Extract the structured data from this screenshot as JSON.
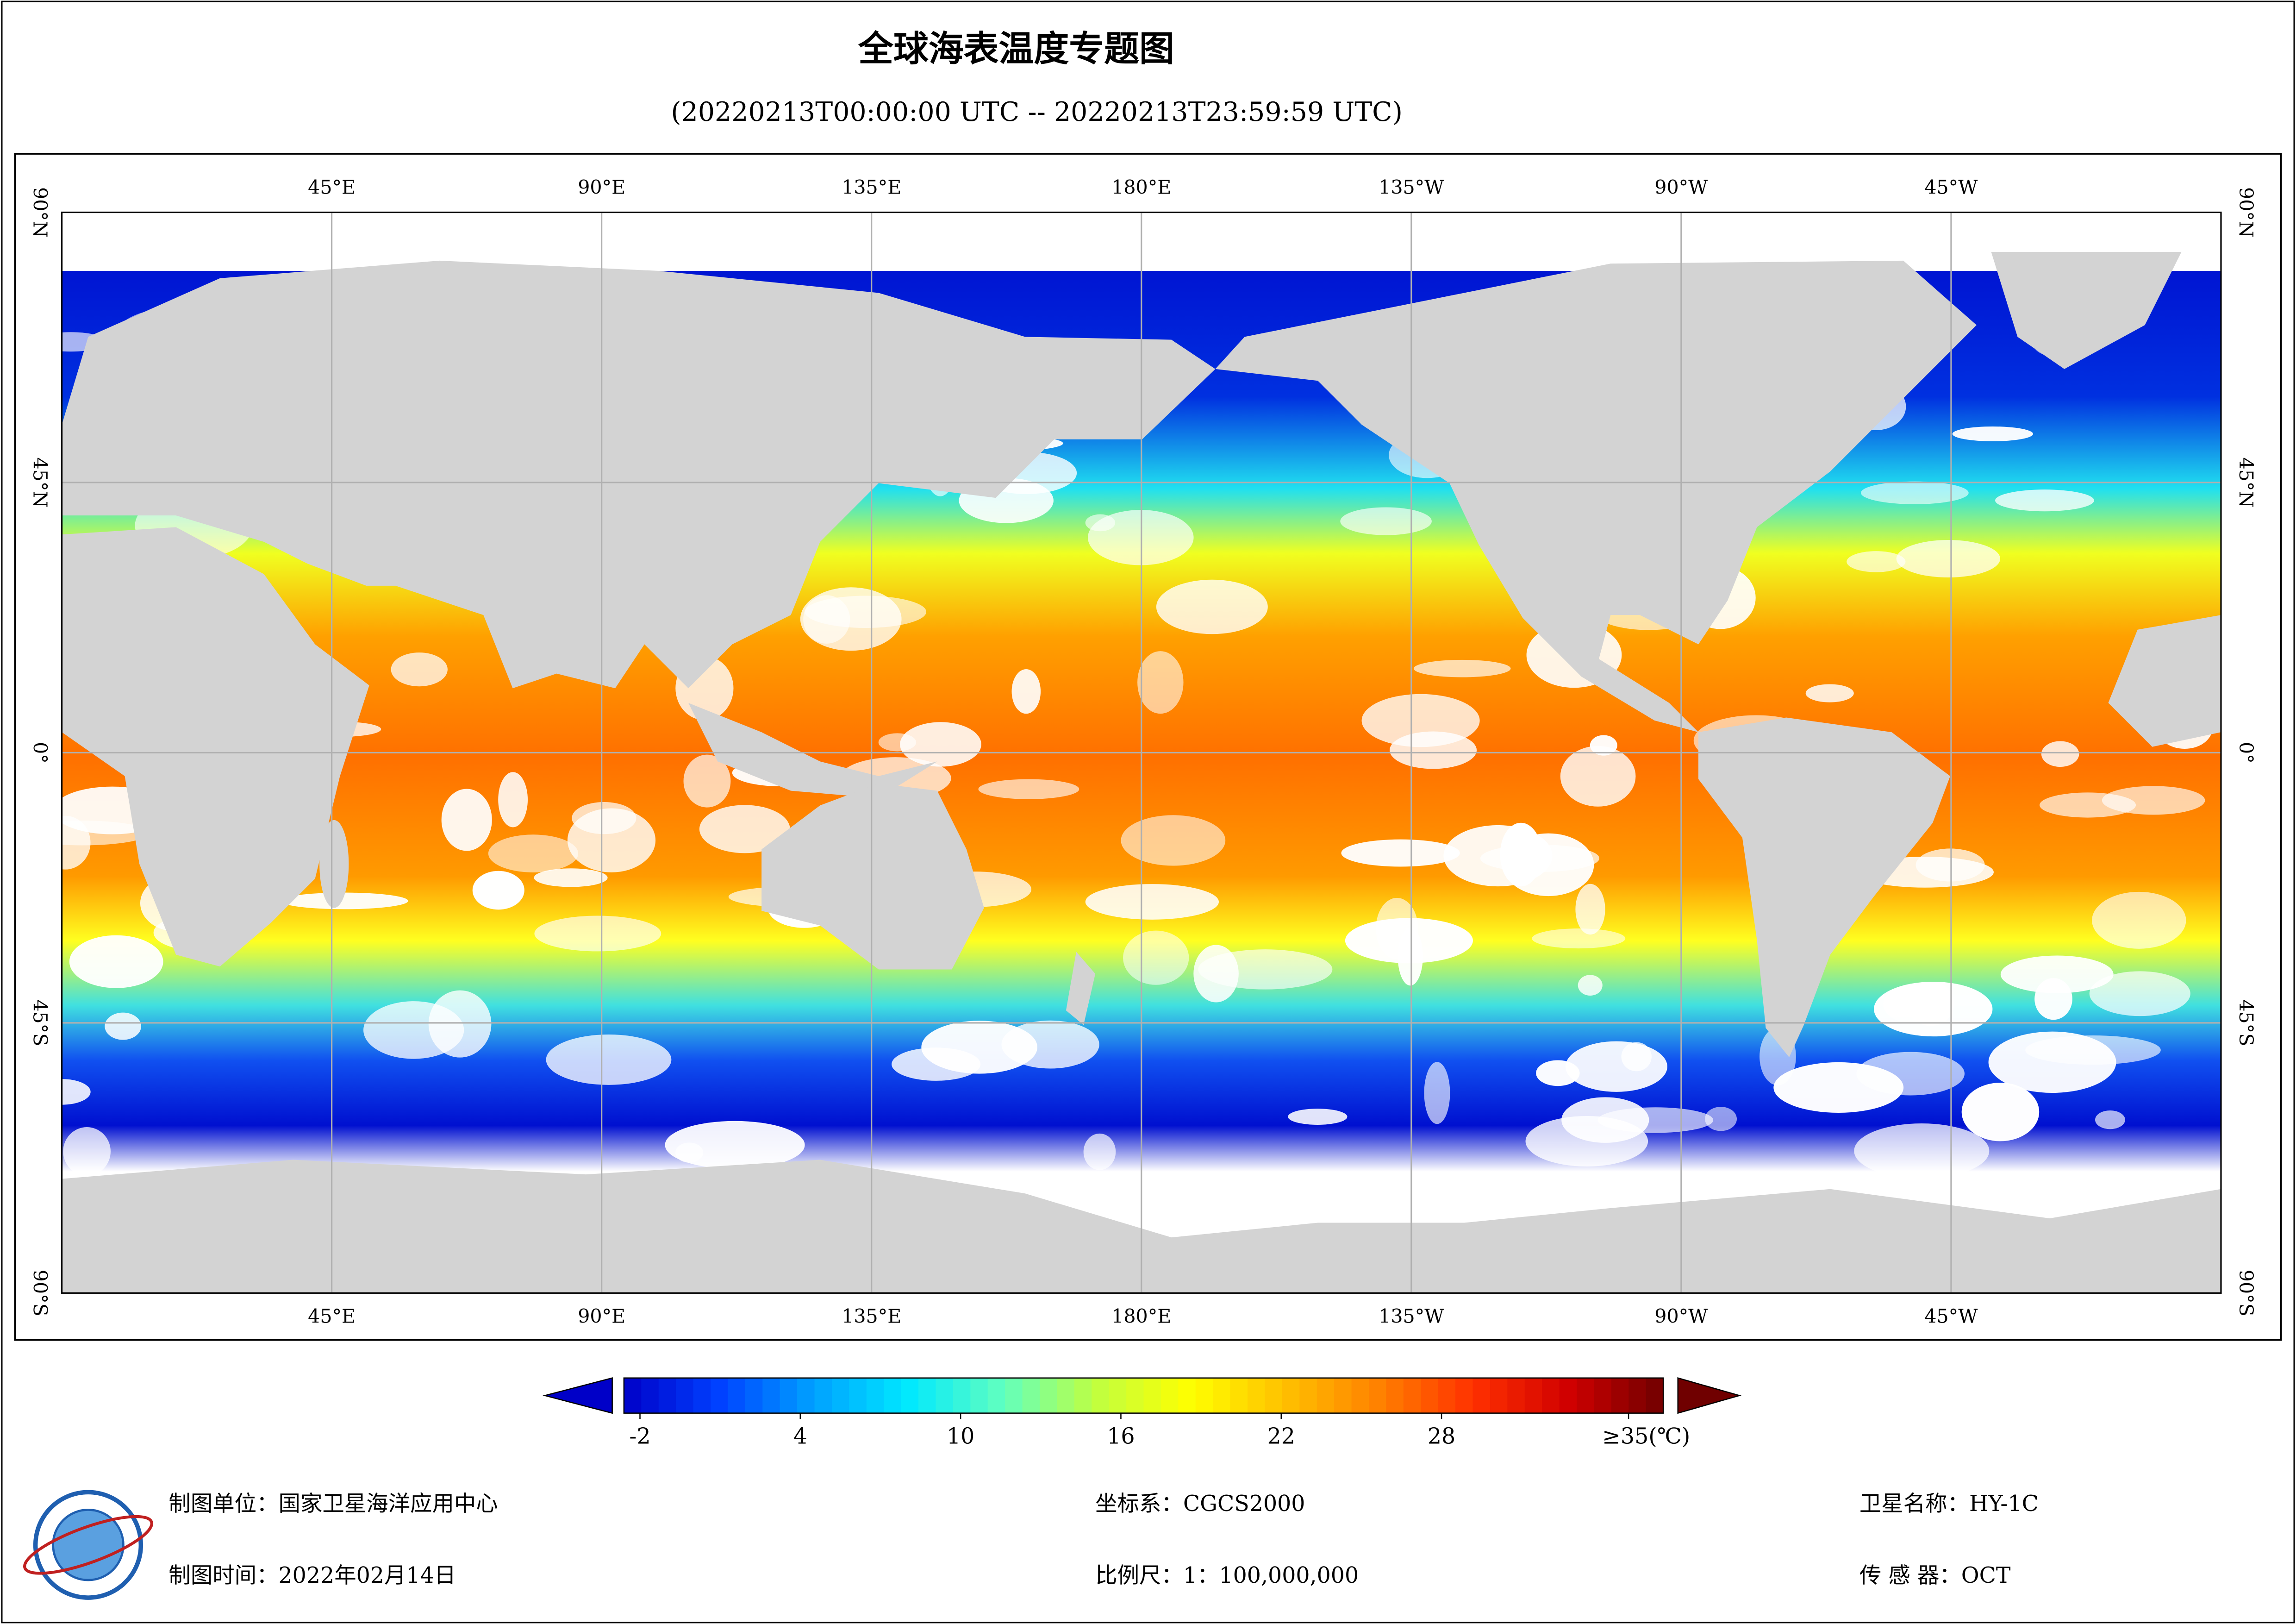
{
  "title": "全球海表温度专题图",
  "subtitle": "(20220213T00:00:00 UTC -- 20220213T23:59:59 UTC)",
  "map": {
    "lon_ticks": [
      {
        "value": 45,
        "label": "45°E"
      },
      {
        "value": 90,
        "label": "90°E"
      },
      {
        "value": 135,
        "label": "135°E"
      },
      {
        "value": 180,
        "label": "180°E"
      },
      {
        "value": 225,
        "label": "135°W"
      },
      {
        "value": 270,
        "label": "90°W"
      },
      {
        "value": 315,
        "label": "45°W"
      }
    ],
    "lat_ticks": [
      {
        "value": 90,
        "label": "90°N"
      },
      {
        "value": 45,
        "label": "45°N"
      },
      {
        "value": 0,
        "label": "0°"
      },
      {
        "value": -45,
        "label": "45°S"
      },
      {
        "value": -90,
        "label": "90°S"
      }
    ],
    "grid": true
  },
  "colorbar": {
    "lim": [
      -2.6,
      36.3
    ],
    "ticks": [
      -2,
      4,
      10,
      16,
      22,
      28,
      {
        "value": 35,
        "label": "≥35(℃)"
      }
    ],
    "colors": [
      "#0000c8",
      "#0040ff",
      "#00a0ff",
      "#00e8ff",
      "#60ffc0",
      "#c0ff40",
      "#ffff00",
      "#ffc000",
      "#ff8000",
      "#ff3000",
      "#d00000",
      "#700000"
    ]
  },
  "footer": {
    "unit": "制图单位：国家卫星海洋应用中心",
    "time": "制图时间：2022年02月14日",
    "crs": "坐标系：CGCS2000",
    "scale": "比例尺：1：100,000,000",
    "satellite": "卫星名称：HY-1C",
    "sensor": "传 感 器：OCT"
  }
}
